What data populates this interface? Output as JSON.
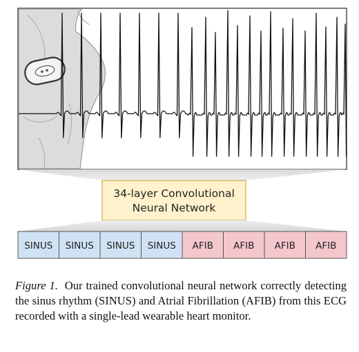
{
  "network_label": [
    "34-layer Convolutional",
    "Neural Network"
  ],
  "segments": [
    {
      "label": "SINUS",
      "class": "sinus"
    },
    {
      "label": "SINUS",
      "class": "sinus"
    },
    {
      "label": "SINUS",
      "class": "sinus"
    },
    {
      "label": "SINUS",
      "class": "sinus"
    },
    {
      "label": "AFIB",
      "class": "afib"
    },
    {
      "label": "AFIB",
      "class": "afib"
    },
    {
      "label": "AFIB",
      "class": "afib"
    },
    {
      "label": "AFIB",
      "class": "afib"
    }
  ],
  "colors": {
    "sinus_fill": "#cfe2f3",
    "afib_fill": "#f4c7cd",
    "network_fill": "#fff2cc",
    "network_stroke": "#c7a94a",
    "ecg_stroke": "#111111"
  },
  "caption": {
    "label": "Figure 1.",
    "text": "Our trained convolutional neural network correctly detecting the sinus rhythm (SINUS) and Atrial Fibrillation (AFIB) from this ECG recorded with a single-lead wearable heart monitor."
  }
}
